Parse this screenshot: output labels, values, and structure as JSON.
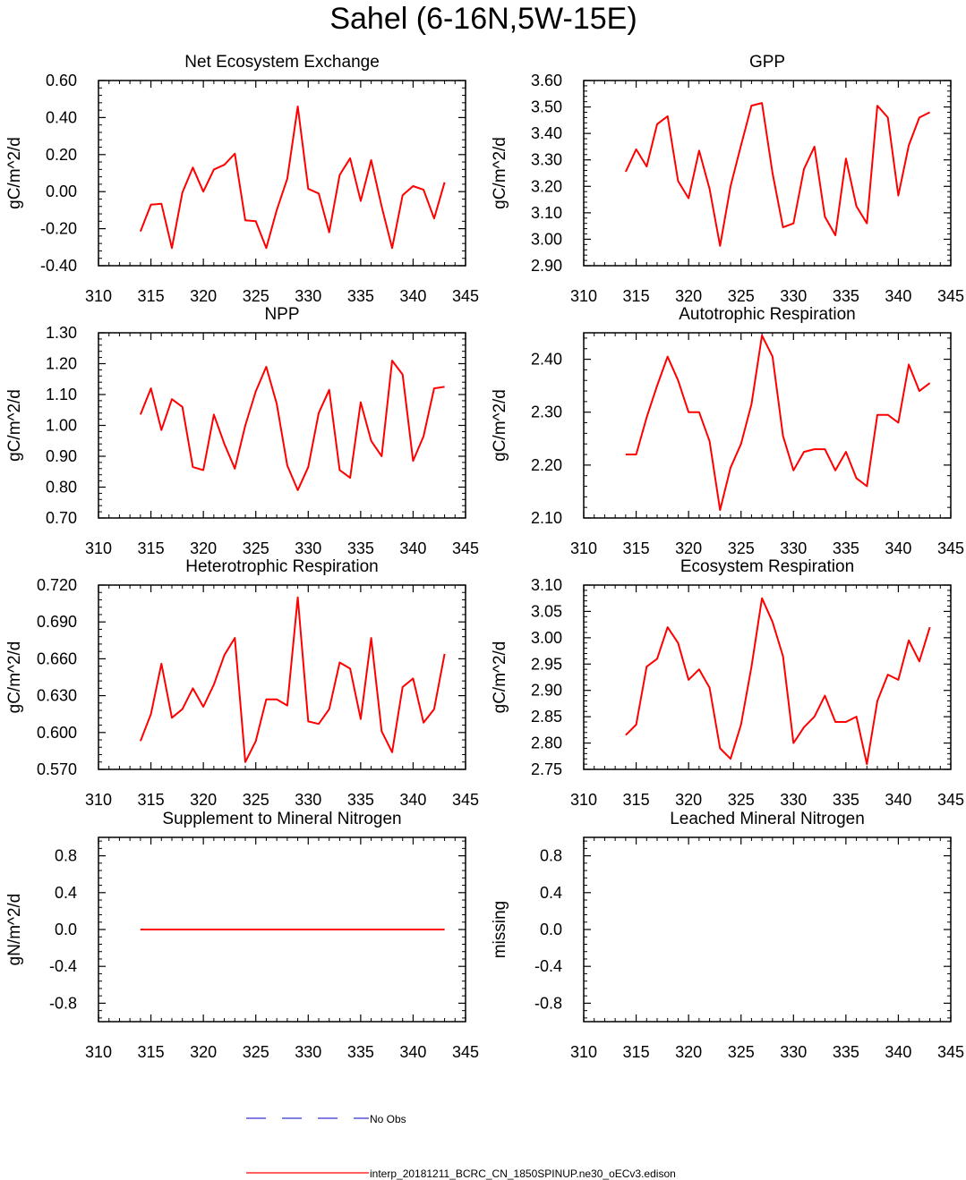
{
  "title": "Sahel (6-16N,5W-15E)",
  "colors": {
    "model": "#ff0000",
    "obs": "#3333cc",
    "axis": "#000000"
  },
  "legend": {
    "obs_label": "No Obs",
    "model_label": "interp_20181211_BCRC_CN_1850SPINUP.ne30_oECv3.edison"
  },
  "chart_data": [
    {
      "type": "line",
      "title": "Net Ecosystem Exchange",
      "ylabel": "gC/m^2/d",
      "xlim": [
        310,
        345
      ],
      "ylim": [
        -0.4,
        0.6
      ],
      "xticks": [
        "310",
        "315",
        "320",
        "325",
        "330",
        "335",
        "340",
        "345"
      ],
      "yticks": [
        "-0.40",
        "-0.20",
        "0.00",
        "0.20",
        "0.40",
        "0.60"
      ],
      "x": [
        314,
        315,
        316,
        317,
        318,
        319,
        320,
        321,
        322,
        323,
        324,
        325,
        326,
        327,
        328,
        329,
        330,
        331,
        332,
        333,
        334,
        335,
        336,
        337,
        338,
        339,
        340,
        341,
        342,
        343
      ],
      "series": [
        {
          "name": "model",
          "values": [
            -0.215,
            -0.07,
            -0.065,
            -0.305,
            -0.005,
            0.13,
            0.0,
            0.12,
            0.145,
            0.205,
            -0.155,
            -0.16,
            -0.305,
            -0.1,
            0.07,
            0.46,
            0.015,
            -0.01,
            -0.22,
            0.09,
            0.18,
            -0.05,
            0.17,
            -0.08,
            -0.305,
            -0.02,
            0.03,
            0.01,
            -0.145,
            0.05
          ]
        }
      ]
    },
    {
      "type": "line",
      "title": "GPP",
      "ylabel": "gC/m^2/d",
      "xlim": [
        310,
        345
      ],
      "ylim": [
        2.9,
        3.6
      ],
      "xticks": [
        "310",
        "315",
        "320",
        "325",
        "330",
        "335",
        "340",
        "345"
      ],
      "yticks": [
        "2.90",
        "3.00",
        "3.10",
        "3.20",
        "3.30",
        "3.40",
        "3.50",
        "3.60"
      ],
      "x": [
        314,
        315,
        316,
        317,
        318,
        319,
        320,
        321,
        322,
        323,
        324,
        325,
        326,
        327,
        328,
        329,
        330,
        331,
        332,
        333,
        334,
        335,
        336,
        337,
        338,
        339,
        340,
        341,
        342,
        343
      ],
      "series": [
        {
          "name": "model",
          "values": [
            3.255,
            3.34,
            3.275,
            3.435,
            3.465,
            3.22,
            3.155,
            3.335,
            3.19,
            2.975,
            3.2,
            3.355,
            3.505,
            3.515,
            3.25,
            3.045,
            3.06,
            3.265,
            3.35,
            3.085,
            3.015,
            3.305,
            3.125,
            3.06,
            3.505,
            3.46,
            3.165,
            3.355,
            3.46,
            3.48
          ]
        }
      ]
    },
    {
      "type": "line",
      "title": "NPP",
      "ylabel": "gC/m^2/d",
      "xlim": [
        310,
        345
      ],
      "ylim": [
        0.7,
        1.3
      ],
      "xticks": [
        "310",
        "315",
        "320",
        "325",
        "330",
        "335",
        "340",
        "345"
      ],
      "yticks": [
        "0.70",
        "0.80",
        "0.90",
        "1.00",
        "1.10",
        "1.20",
        "1.30"
      ],
      "x": [
        314,
        315,
        316,
        317,
        318,
        319,
        320,
        321,
        322,
        323,
        324,
        325,
        326,
        327,
        328,
        329,
        330,
        331,
        332,
        333,
        334,
        335,
        336,
        337,
        338,
        339,
        340,
        341,
        342,
        343
      ],
      "series": [
        {
          "name": "model",
          "values": [
            1.035,
            1.12,
            0.985,
            1.085,
            1.06,
            0.865,
            0.855,
            1.035,
            0.94,
            0.86,
            1.0,
            1.11,
            1.19,
            1.07,
            0.87,
            0.79,
            0.865,
            1.04,
            1.115,
            0.855,
            0.83,
            1.075,
            0.95,
            0.9,
            1.21,
            1.165,
            0.885,
            0.965,
            1.12,
            1.125
          ]
        }
      ]
    },
    {
      "type": "line",
      "title": "Autotrophic Respiration",
      "ylabel": "gC/m^2/d",
      "xlim": [
        310,
        345
      ],
      "ylim": [
        2.1,
        2.45
      ],
      "xticks": [
        "310",
        "315",
        "320",
        "325",
        "330",
        "335",
        "340",
        "345"
      ],
      "yticks": [
        "2.10",
        "2.20",
        "2.30",
        "2.40"
      ],
      "x": [
        314,
        315,
        316,
        317,
        318,
        319,
        320,
        321,
        322,
        323,
        324,
        325,
        326,
        327,
        328,
        329,
        330,
        331,
        332,
        333,
        334,
        335,
        336,
        337,
        338,
        339,
        340,
        341,
        342,
        343
      ],
      "series": [
        {
          "name": "model",
          "values": [
            2.22,
            2.22,
            2.29,
            2.35,
            2.405,
            2.36,
            2.3,
            2.3,
            2.245,
            2.115,
            2.195,
            2.24,
            2.315,
            2.445,
            2.405,
            2.255,
            2.19,
            2.225,
            2.23,
            2.23,
            2.19,
            2.225,
            2.175,
            2.16,
            2.295,
            2.295,
            2.28,
            2.39,
            2.34,
            2.355
          ]
        }
      ]
    },
    {
      "type": "line",
      "title": "Heterotrophic Respiration",
      "ylabel": "gC/m^2/d",
      "xlim": [
        310,
        345
      ],
      "ylim": [
        0.57,
        0.72
      ],
      "xticks": [
        "310",
        "315",
        "320",
        "325",
        "330",
        "335",
        "340",
        "345"
      ],
      "yticks": [
        "0.570",
        "0.600",
        "0.630",
        "0.660",
        "0.690",
        "0.720"
      ],
      "x": [
        314,
        315,
        316,
        317,
        318,
        319,
        320,
        321,
        322,
        323,
        324,
        325,
        326,
        327,
        328,
        329,
        330,
        331,
        332,
        333,
        334,
        335,
        336,
        337,
        338,
        339,
        340,
        341,
        342,
        343
      ],
      "series": [
        {
          "name": "model",
          "values": [
            0.593,
            0.615,
            0.656,
            0.612,
            0.619,
            0.636,
            0.621,
            0.639,
            0.663,
            0.677,
            0.576,
            0.593,
            0.627,
            0.627,
            0.622,
            0.71,
            0.609,
            0.607,
            0.619,
            0.657,
            0.652,
            0.611,
            0.677,
            0.601,
            0.584,
            0.637,
            0.644,
            0.608,
            0.619,
            0.664
          ]
        }
      ]
    },
    {
      "type": "line",
      "title": "Ecosystem Respiration",
      "ylabel": "gC/m^2/d",
      "xlim": [
        310,
        345
      ],
      "ylim": [
        2.75,
        3.1
      ],
      "xticks": [
        "310",
        "315",
        "320",
        "325",
        "330",
        "335",
        "340",
        "345"
      ],
      "yticks": [
        "2.75",
        "2.80",
        "2.85",
        "2.90",
        "2.95",
        "3.00",
        "3.05",
        "3.10"
      ],
      "x": [
        314,
        315,
        316,
        317,
        318,
        319,
        320,
        321,
        322,
        323,
        324,
        325,
        326,
        327,
        328,
        329,
        330,
        331,
        332,
        333,
        334,
        335,
        336,
        337,
        338,
        339,
        340,
        341,
        342,
        343
      ],
      "series": [
        {
          "name": "model",
          "values": [
            2.815,
            2.835,
            2.945,
            2.96,
            3.02,
            2.99,
            2.92,
            2.94,
            2.905,
            2.79,
            2.77,
            2.835,
            2.945,
            3.075,
            3.03,
            2.965,
            2.8,
            2.83,
            2.85,
            2.89,
            2.84,
            2.84,
            2.85,
            2.76,
            2.88,
            2.93,
            2.92,
            2.995,
            2.955,
            3.02
          ]
        }
      ]
    },
    {
      "type": "line",
      "title": "Supplement to Mineral Nitrogen",
      "ylabel": "gN/m^2/d",
      "xlim": [
        310,
        345
      ],
      "ylim": [
        -1.0,
        1.0
      ],
      "xticks": [
        "310",
        "315",
        "320",
        "325",
        "330",
        "335",
        "340",
        "345"
      ],
      "yticks": [
        "-0.8",
        "-0.4",
        "0.0",
        "0.4",
        "0.8"
      ],
      "x": [
        314,
        315,
        316,
        317,
        318,
        319,
        320,
        321,
        322,
        323,
        324,
        325,
        326,
        327,
        328,
        329,
        330,
        331,
        332,
        333,
        334,
        335,
        336,
        337,
        338,
        339,
        340,
        341,
        342,
        343
      ],
      "series": [
        {
          "name": "model",
          "values": [
            0,
            0,
            0,
            0,
            0,
            0,
            0,
            0,
            0,
            0,
            0,
            0,
            0,
            0,
            0,
            0,
            0,
            0,
            0,
            0,
            0,
            0,
            0,
            0,
            0,
            0,
            0,
            0,
            0,
            0
          ]
        }
      ]
    },
    {
      "type": "line",
      "title": "Leached Mineral Nitrogen",
      "ylabel": "missing",
      "xlim": [
        310,
        345
      ],
      "ylim": [
        -1.0,
        1.0
      ],
      "xticks": [
        "310",
        "315",
        "320",
        "325",
        "330",
        "335",
        "340",
        "345"
      ],
      "yticks": [
        "-0.8",
        "-0.4",
        "0.0",
        "0.4",
        "0.8"
      ],
      "x": [],
      "series": []
    }
  ]
}
